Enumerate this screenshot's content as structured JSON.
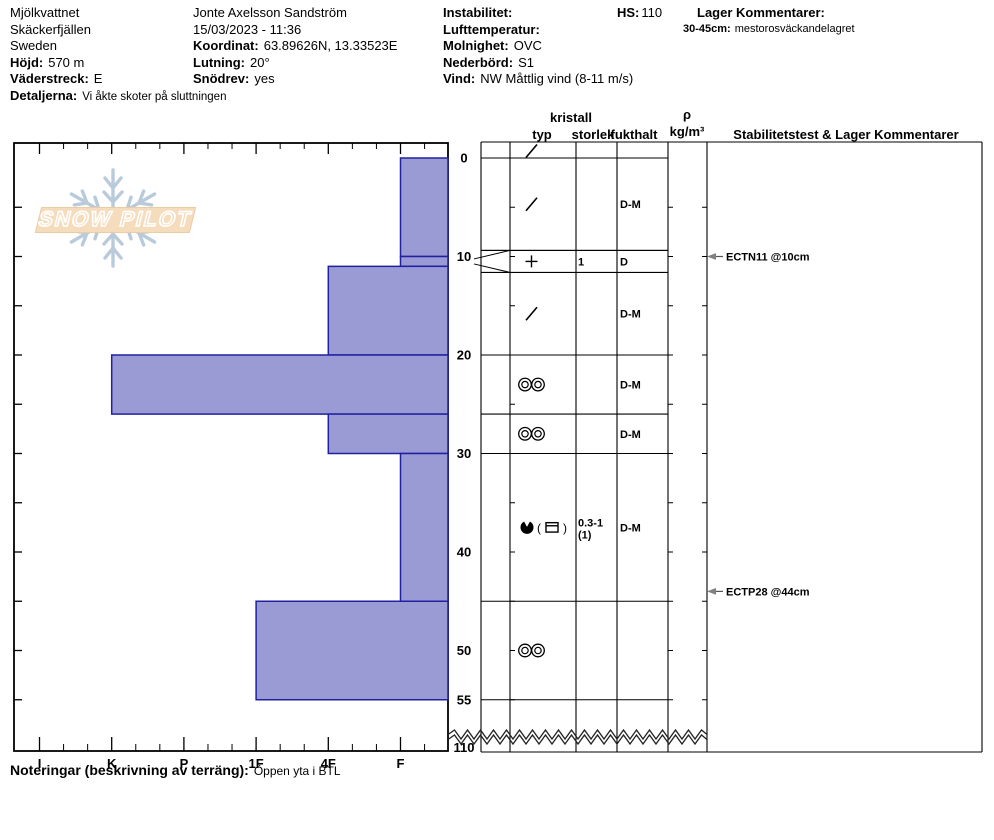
{
  "header": {
    "col1": [
      {
        "label": "",
        "value": "Mjölkvattnet"
      },
      {
        "label": "",
        "value": "Skäckerfjällen"
      },
      {
        "label": "",
        "value": "Sweden"
      },
      {
        "label": "Höjd:",
        "value": "570 m"
      },
      {
        "label": "Väderstreck:",
        "value": "E"
      },
      {
        "label": "Detaljerna:",
        "value": "Vi åkte skoter på sluttningen"
      }
    ],
    "col2": [
      {
        "label": "",
        "value": "Jonte Axelsson Sandström"
      },
      {
        "label": "",
        "value": "15/03/2023 - 11:36"
      },
      {
        "label": "Koordinat:",
        "value": "63.89626N, 13.33523E"
      },
      {
        "label": "Lutning:",
        "value": "20°"
      },
      {
        "label": "Snödrev:",
        "value": "yes"
      }
    ],
    "col3": [
      {
        "label": "Instabilitet:",
        "value": ""
      },
      {
        "label": "Lufttemperatur:",
        "value": ""
      },
      {
        "label": "Molnighet:",
        "value": "OVC"
      },
      {
        "label": "Nederbörd:",
        "value": "S1"
      },
      {
        "label": "Vind:",
        "value": "NW Måttlig vind (8-11 m/s)"
      }
    ],
    "hs": {
      "label": "HS:",
      "value": "110"
    },
    "lager": {
      "label": "Lager Kommentarer:",
      "range": "30-45cm:",
      "text": "mestorosväckandelagret"
    }
  },
  "logo": {
    "text": "SNOW PILOT"
  },
  "footer": {
    "label": "Noteringar (beskrivning av terräng):",
    "value": "Öppen yta i BTL"
  },
  "chart_data": {
    "type": "snow-profile",
    "hs_cm": 110,
    "pit_depth_cm": 55,
    "depth_unit": "cm",
    "depth_ticks": [
      0,
      10,
      20,
      30,
      40,
      50,
      55
    ],
    "depth_break": {
      "from_cm": 55,
      "to_cm": 110,
      "bottom_label": "110"
    },
    "hardness_categories": [
      "I",
      "K",
      "P",
      "1F",
      "4F",
      "F"
    ],
    "column_headers": {
      "typ": "typ",
      "kristall": "kristall",
      "storlek": "storlek",
      "fukthalt": "fukthalt",
      "rho": "ρ",
      "rho_unit": "kg/m³",
      "stab": "Stabilitetstest & Lager Kommentarer"
    },
    "surface_grain": {
      "grain_type": "DF",
      "grain_display": "/"
    },
    "layers": [
      {
        "top_cm": 0,
        "bottom_cm": 10,
        "hardness": "F",
        "grain_type": "DF",
        "grain_display": "/",
        "size_lines": [],
        "wetness": "D-M"
      },
      {
        "top_cm": 10,
        "bottom_cm": 11,
        "hardness": "F",
        "grain_type": "PP",
        "grain_display": "+",
        "size_lines": [
          "1"
        ],
        "wetness": "D"
      },
      {
        "top_cm": 11,
        "bottom_cm": 20,
        "hardness": "4F",
        "grain_type": "DF",
        "grain_display": "/",
        "size_lines": [],
        "wetness": "D-M"
      },
      {
        "top_cm": 20,
        "bottom_cm": 26,
        "hardness": "K",
        "grain_type": "MFcl",
        "grain_display": "◎◎",
        "size_lines": [],
        "wetness": "D-M"
      },
      {
        "top_cm": 26,
        "bottom_cm": 30,
        "hardness": "4F",
        "grain_type": "MFcl",
        "grain_display": "◎◎",
        "size_lines": [],
        "wetness": "D-M"
      },
      {
        "top_cm": 30,
        "bottom_cm": 45,
        "hardness": "F",
        "grain_type": "MF(MFcr)",
        "grain_display": "◕ ( ⊟ )",
        "size_lines": [
          "0.3-1",
          "(1)"
        ],
        "wetness": "D-M"
      },
      {
        "top_cm": 45,
        "bottom_cm": 55,
        "hardness": "1F",
        "grain_type": "MFcl",
        "grain_display": "◎◎",
        "size_lines": [],
        "wetness": ""
      }
    ],
    "tests": [
      {
        "label": "ECTN11 @10cm",
        "depth_cm": 10
      },
      {
        "label": "ECTP28 @44cm",
        "depth_cm": 44
      }
    ],
    "colors": {
      "bar_fill": "#9a9ad5",
      "bar_stroke": "#2121a0",
      "axis": "#000000",
      "arrow": "#808080",
      "logo_snowflake": "#b9cadb",
      "logo_band": "#f5dcbc",
      "logo_band_border": "#e9cda6"
    }
  }
}
